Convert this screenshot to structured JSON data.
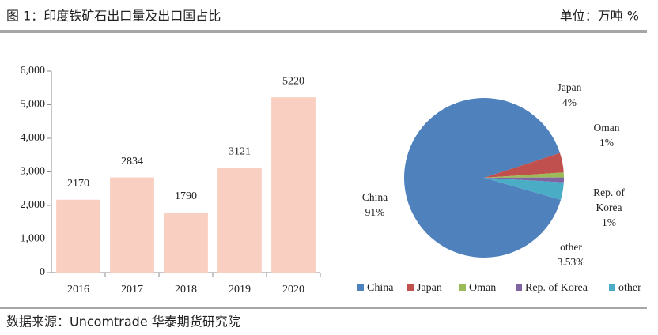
{
  "header": {
    "title": "图 1：印度铁矿石出口量及出口国占比",
    "unit": "单位：万吨 %"
  },
  "footer": {
    "source": "数据来源：Uncomtrade 华泰期货研究院"
  },
  "chart_data": [
    {
      "type": "bar",
      "categories": [
        "2016",
        "2017",
        "2018",
        "2019",
        "2020"
      ],
      "values": [
        2170,
        2834,
        1790,
        3121,
        5220
      ],
      "color": "#f9cfc2",
      "ylim": [
        0,
        6000
      ],
      "yticks": [
        0,
        {
          "value": 1000,
          "label": "1,000"
        },
        {
          "value": 2000,
          "label": "2,000"
        },
        {
          "value": 3000,
          "label": "3,000"
        },
        {
          "value": 4000,
          "label": "4,000"
        },
        {
          "value": 5000,
          "label": "5,000"
        },
        {
          "value": 6000,
          "label": "6,000"
        }
      ]
    },
    {
      "type": "pie",
      "categories": [
        "China",
        "Japan",
        "Oman",
        "Rep. of Korea",
        "other"
      ],
      "values": [
        91,
        4,
        1,
        1,
        3.53
      ],
      "value_labels": [
        "91%",
        "4%",
        "1%",
        "1%",
        "3.53%"
      ],
      "colors": [
        "#4f81bd",
        "#c0504d",
        "#9bbb59",
        "#8064a2",
        "#4bacc6"
      ],
      "legend": "bottom"
    }
  ]
}
